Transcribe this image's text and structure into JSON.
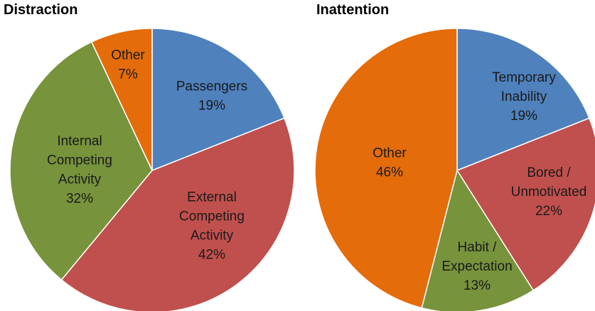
{
  "chart_data": [
    {
      "type": "pie",
      "title": "Distraction",
      "categories": [
        "Passengers",
        "External Competing Activity",
        "Internal Competing Activity",
        "Other"
      ],
      "values": [
        19,
        42,
        32,
        7
      ],
      "value_labels": [
        "19%",
        "42%",
        "32%",
        "7%"
      ],
      "colors": [
        "#4f81bd",
        "#c0504d",
        "#77933c",
        "#e46c0a"
      ]
    },
    {
      "type": "pie",
      "title": "Inattention",
      "categories": [
        "Temporary Inability",
        "Bored / Unmotivated",
        "Habit / Expectation",
        "Other"
      ],
      "values": [
        19,
        22,
        13,
        46
      ],
      "value_labels": [
        "19%",
        "22%",
        "13%",
        "46%"
      ],
      "colors": [
        "#4f81bd",
        "#c0504d",
        "#77933c",
        "#e46c0a"
      ]
    }
  ]
}
